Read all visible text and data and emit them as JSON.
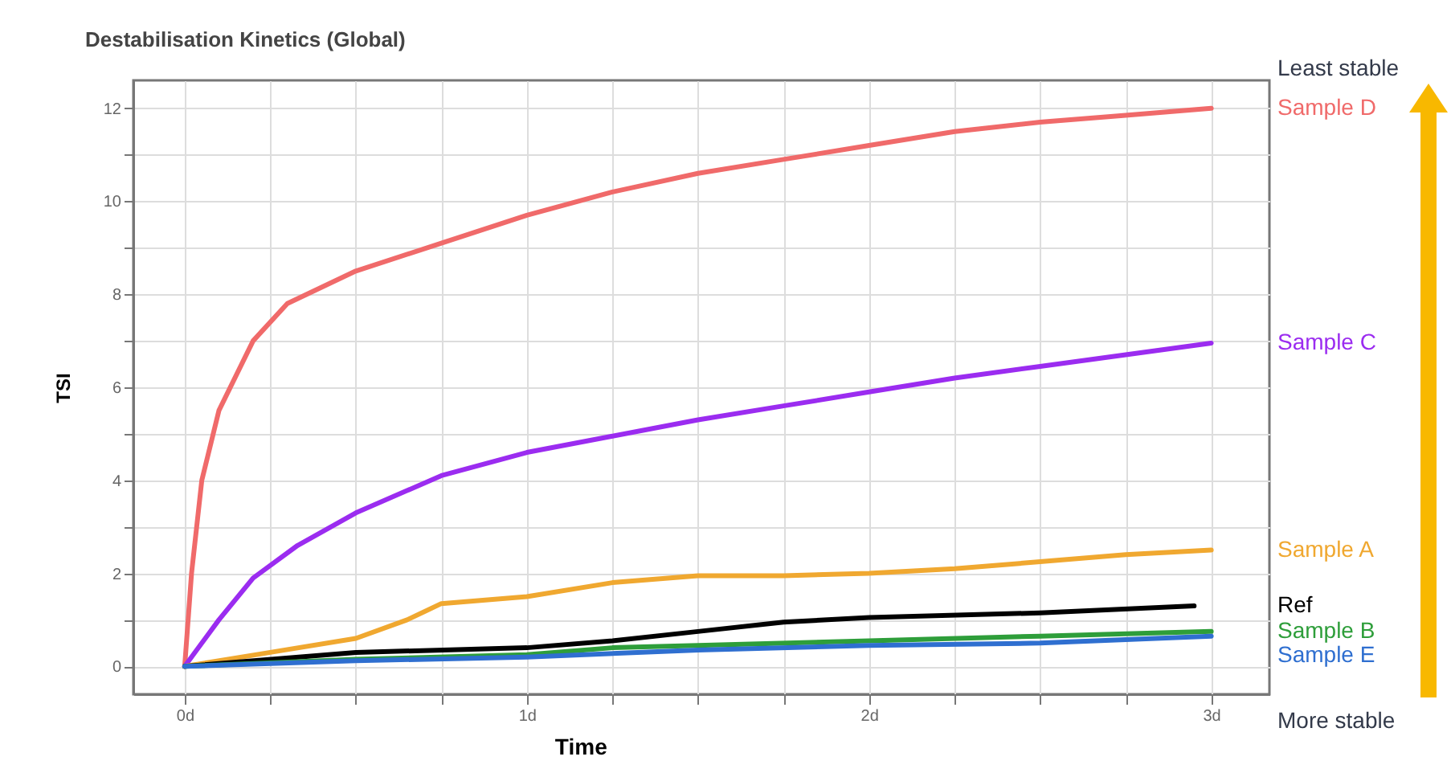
{
  "chart_data": {
    "type": "line",
    "title": "Destabilisation Kinetics (Global)",
    "xlabel": "Time",
    "ylabel": "TSI",
    "xlim": [
      -0.15,
      3.17
    ],
    "ylim": [
      -0.6,
      12.6
    ],
    "xticks": [
      {
        "value": 0,
        "label": "0d"
      },
      {
        "value": 0.25,
        "label": null
      },
      {
        "value": 0.5,
        "label": null
      },
      {
        "value": 0.75,
        "label": null
      },
      {
        "value": 1,
        "label": "1d"
      },
      {
        "value": 1.25,
        "label": null
      },
      {
        "value": 1.5,
        "label": null
      },
      {
        "value": 1.75,
        "label": null
      },
      {
        "value": 2,
        "label": "2d"
      },
      {
        "value": 2.25,
        "label": null
      },
      {
        "value": 2.5,
        "label": null
      },
      {
        "value": 2.75,
        "label": null
      },
      {
        "value": 3,
        "label": "3d"
      }
    ],
    "yticks": [
      0,
      {
        "value": 1,
        "label": null
      },
      2,
      {
        "value": 3,
        "label": null
      },
      4,
      {
        "value": 5,
        "label": null
      },
      6,
      {
        "value": 7,
        "label": null
      },
      8,
      {
        "value": 9,
        "label": null
      },
      10,
      {
        "value": 11,
        "label": null
      },
      12
    ],
    "grid": true,
    "legend": false,
    "line_style": "solid",
    "annotations": [
      "Least stable",
      "More stable"
    ],
    "series": [
      {
        "name": "Sample D",
        "color": "#f06a6a",
        "x": [
          0,
          0.02,
          0.05,
          0.1,
          0.2,
          0.3,
          0.5,
          0.75,
          1,
          1.25,
          1.5,
          1.75,
          2,
          2.25,
          2.5,
          2.75,
          3
        ],
        "values": [
          0,
          2,
          4,
          5.5,
          7,
          7.8,
          8.5,
          9.1,
          9.7,
          10.2,
          10.6,
          10.9,
          11.2,
          11.5,
          11.7,
          11.85,
          12
        ]
      },
      {
        "name": "Sample C",
        "color": "#9b2cf0",
        "x": [
          0,
          0.1,
          0.2,
          0.33,
          0.5,
          0.75,
          1,
          1.25,
          1.5,
          1.75,
          2,
          2.25,
          2.5,
          2.75,
          3
        ],
        "values": [
          0,
          1,
          1.9,
          2.6,
          3.3,
          4.1,
          4.6,
          4.95,
          5.3,
          5.6,
          5.9,
          6.2,
          6.45,
          6.7,
          6.95
        ]
      },
      {
        "name": "Sample A",
        "color": "#f0a830",
        "x": [
          0,
          0.25,
          0.5,
          0.65,
          0.75,
          1,
          1.25,
          1.5,
          1.75,
          2,
          2.25,
          2.5,
          2.75,
          3
        ],
        "values": [
          0,
          0.3,
          0.6,
          1,
          1.35,
          1.5,
          1.8,
          1.95,
          1.95,
          2,
          2.1,
          2.25,
          2.4,
          2.5
        ]
      },
      {
        "name": "Ref",
        "color": "#000000",
        "x": [
          0,
          0.5,
          1,
          1.25,
          1.5,
          1.75,
          2,
          2.5,
          2.95
        ],
        "values": [
          0,
          0.3,
          0.4,
          0.55,
          0.75,
          0.95,
          1.05,
          1.15,
          1.3
        ]
      },
      {
        "name": "Sample B",
        "color": "#2e9e3a",
        "x": [
          0,
          0.5,
          1,
          1.25,
          1.5,
          2,
          2.5,
          3
        ],
        "values": [
          0,
          0.15,
          0.25,
          0.4,
          0.45,
          0.55,
          0.65,
          0.75
        ]
      },
      {
        "name": "Sample E",
        "color": "#2f6fd0",
        "x": [
          0,
          0.5,
          1,
          1.5,
          2,
          2.5,
          3
        ],
        "values": [
          0,
          0.12,
          0.2,
          0.35,
          0.45,
          0.5,
          0.65
        ]
      }
    ]
  }
}
